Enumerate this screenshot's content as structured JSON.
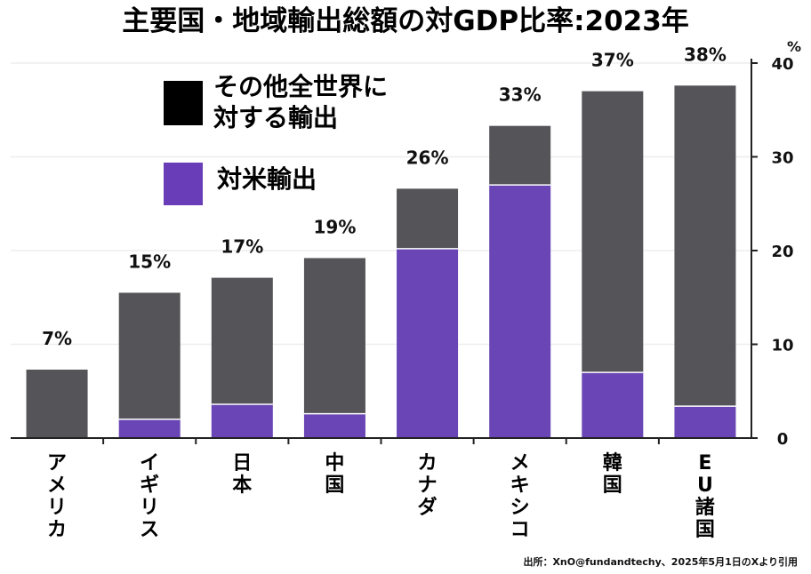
{
  "colors": {
    "other": "#555559",
    "us": "#6a45b5",
    "axis": "#222222",
    "grid": "#eeeeee"
  },
  "chart_data": {
    "type": "bar",
    "stacked": true,
    "title": "主要国・地域輸出総額の対GDP比率:2023年",
    "y_unit": "%",
    "ylim": [
      0,
      40
    ],
    "yticks": [
      "0",
      "10",
      "20",
      "30",
      "40"
    ],
    "legend": [
      {
        "key": "other",
        "lines": [
          "その他全世界に",
          "対する輸出"
        ]
      },
      {
        "key": "us",
        "lines": [
          "対米輸出"
        ]
      }
    ],
    "categories": [
      "アメリカ",
      "イギリス",
      "日本",
      "中国",
      "カナダ",
      "メキシコ",
      "韓国",
      "EU諸国"
    ],
    "total_labels": [
      "7%",
      "15%",
      "17%",
      "19%",
      "26%",
      "33%",
      "37%",
      "38%"
    ],
    "series": [
      {
        "name": "対米輸出",
        "values": [
          0,
          2.0,
          3.6,
          2.6,
          20.2,
          27.0,
          7.0,
          3.4
        ]
      },
      {
        "name": "その他全世界に対する輸出",
        "values": [
          7.3,
          13.5,
          13.5,
          16.6,
          6.4,
          6.3,
          30.0,
          34.2
        ]
      }
    ],
    "source": "出所：XnO@fundandtechy、2025年5月1日のXより引用"
  }
}
